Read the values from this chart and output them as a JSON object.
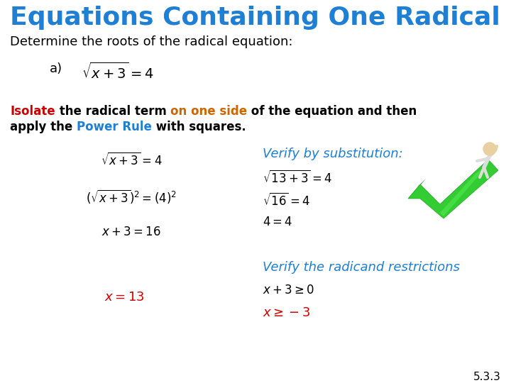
{
  "title": "Equations Containing One Radical",
  "title_color": "#1e7fd4",
  "title_fontsize": 26,
  "subtitle": "Determine the roots of the radical equation:",
  "subtitle_color": "#000000",
  "subtitle_fontsize": 13,
  "background_color": "#ffffff",
  "line1_parts": [
    [
      "Isolate",
      "#cc0000"
    ],
    [
      " the radical term ",
      "#000000"
    ],
    [
      "on one side",
      "#cc6600"
    ],
    [
      " of the equation and then",
      "#000000"
    ]
  ],
  "line2_parts": [
    [
      "apply the ",
      "#000000"
    ],
    [
      "Power Rule",
      "#1e7fd4"
    ],
    [
      " with squares.",
      "#000000"
    ]
  ],
  "steps": [
    "$\\sqrt{x+3} = 4$",
    "$\\left(\\sqrt{x+3}\\right)^{2} = \\left(4\\right)^{2}$",
    "$x + 3 = 16$"
  ],
  "final_step": "$x = 13$",
  "final_step_color": "#cc0000",
  "verify_title": "Verify by substitution:",
  "verify_title_color": "#1e7fd4",
  "verify_steps": [
    "$\\sqrt{13+3} = 4$",
    "$\\sqrt{16} = 4$",
    "$4 = 4$"
  ],
  "restrict_title": "Verify the radicand restrictions",
  "restrict_title_color": "#1e7fd4",
  "restrict_step1": "$x + 3 \\geq 0$",
  "restrict_step2": "$x \\geq -3$",
  "restrict_step2_color": "#cc0000",
  "slide_number": "5.3.3"
}
